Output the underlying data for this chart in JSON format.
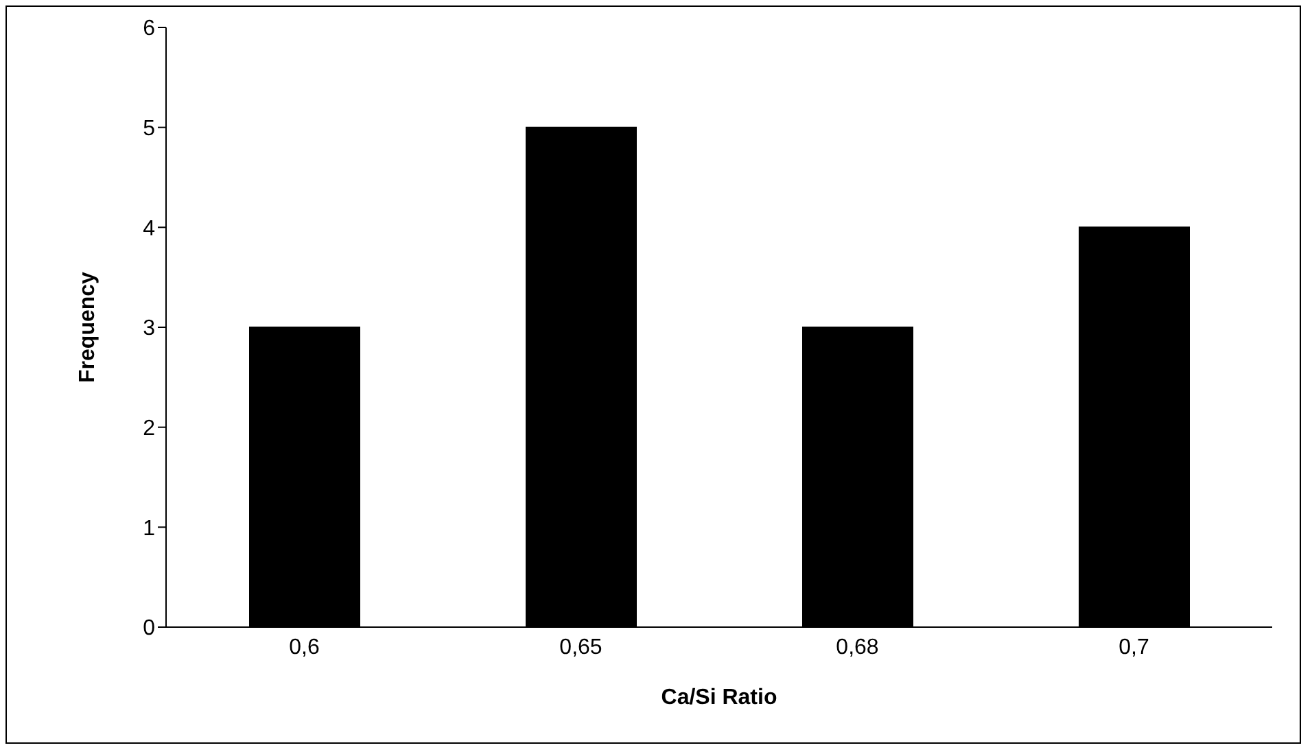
{
  "chart_data": {
    "type": "bar",
    "xlabel": "Ca/Si Ratio",
    "ylabel": "Frequency",
    "categories": [
      "0,6",
      "0,65",
      "0,68",
      "0,7"
    ],
    "values": [
      3,
      5,
      3,
      4
    ],
    "color": "#000000",
    "ylim": [
      0,
      6
    ],
    "yticks": [
      0,
      1,
      2,
      3,
      4,
      5,
      6
    ],
    "grid": false,
    "legend": false
  }
}
